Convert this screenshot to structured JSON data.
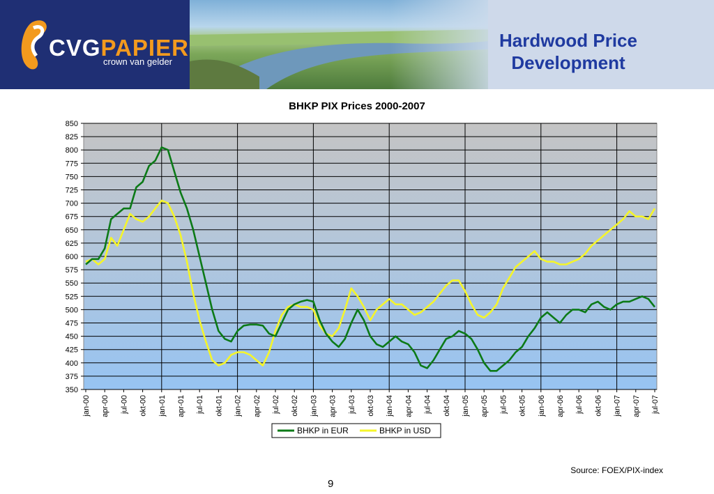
{
  "header": {
    "logo_main": "CVG",
    "logo_accent": "PAPIER",
    "logo_tagline": "crown van gelder",
    "title_line1": "Hardwood Price",
    "title_line2": "Development"
  },
  "footer": {
    "source": "Source: FOEX/PIX-index",
    "page_number": "9"
  },
  "colors": {
    "eur_series": "#0c7a17",
    "usd_series": "#f5f52a",
    "title": "#1f3aa0",
    "logo_bg": "#1f2f74",
    "logo_accent": "#f39a1e"
  },
  "chart_data": {
    "type": "line",
    "title": "BHKP PIX Prices 2000-2007",
    "xlabel": "",
    "ylabel": "",
    "ylim": [
      350,
      850
    ],
    "ystep": 25,
    "yticks": [
      "350",
      "375",
      "400",
      "425",
      "450",
      "475",
      "500",
      "525",
      "550",
      "575",
      "600",
      "625",
      "650",
      "675",
      "700",
      "725",
      "750",
      "775",
      "800",
      "825",
      "850"
    ],
    "xticks": [
      "jan-00",
      "apr-00",
      "jul-00",
      "okt-00",
      "jan-01",
      "apr-01",
      "jul-01",
      "okt-01",
      "jan-02",
      "apr-02",
      "jul-02",
      "okt-02",
      "jan-03",
      "apr-03",
      "jul-03",
      "okt-03",
      "jan-04",
      "apr-04",
      "jul-04",
      "okt-04",
      "jan-05",
      "apr-05",
      "jul-05",
      "okt-05",
      "jan-06",
      "apr-06",
      "jul-06",
      "okt-06",
      "jan-07",
      "apr-07",
      "jul-07"
    ],
    "x_months": 91,
    "legend": "bottom",
    "series": [
      {
        "name": "BHKP in EUR",
        "color": "#0c7a17",
        "values": [
          585,
          595,
          595,
          615,
          670,
          680,
          690,
          690,
          730,
          740,
          770,
          780,
          805,
          800,
          760,
          720,
          690,
          650,
          600,
          550,
          500,
          460,
          445,
          440,
          460,
          470,
          472,
          472,
          470,
          455,
          450,
          475,
          500,
          510,
          515,
          518,
          515,
          480,
          455,
          440,
          430,
          445,
          475,
          500,
          480,
          450,
          435,
          430,
          440,
          450,
          440,
          435,
          420,
          395,
          390,
          405,
          425,
          445,
          450,
          460,
          455,
          445,
          425,
          400,
          385,
          385,
          395,
          405,
          420,
          430,
          450,
          465,
          485,
          495,
          485,
          475,
          490,
          500,
          500,
          495,
          510,
          515,
          505,
          500,
          510,
          515,
          515,
          520,
          525,
          520,
          505
        ]
      },
      {
        "name": "BHKP in USD",
        "color": "#f5f52a",
        "values": [
          590,
          595,
          585,
          595,
          635,
          620,
          650,
          680,
          670,
          665,
          675,
          690,
          705,
          700,
          675,
          640,
          590,
          530,
          480,
          440,
          405,
          395,
          400,
          415,
          420,
          420,
          415,
          405,
          395,
          420,
          460,
          490,
          505,
          510,
          505,
          505,
          500,
          470,
          455,
          450,
          465,
          500,
          540,
          525,
          505,
          480,
          500,
          510,
          520,
          510,
          510,
          500,
          490,
          495,
          505,
          515,
          530,
          545,
          555,
          555,
          535,
          510,
          490,
          485,
          495,
          510,
          540,
          560,
          580,
          590,
          600,
          610,
          595,
          590,
          590,
          585,
          585,
          590,
          595,
          605,
          620,
          630,
          640,
          650,
          660,
          670,
          685,
          675,
          675,
          670,
          690
        ]
      }
    ]
  }
}
